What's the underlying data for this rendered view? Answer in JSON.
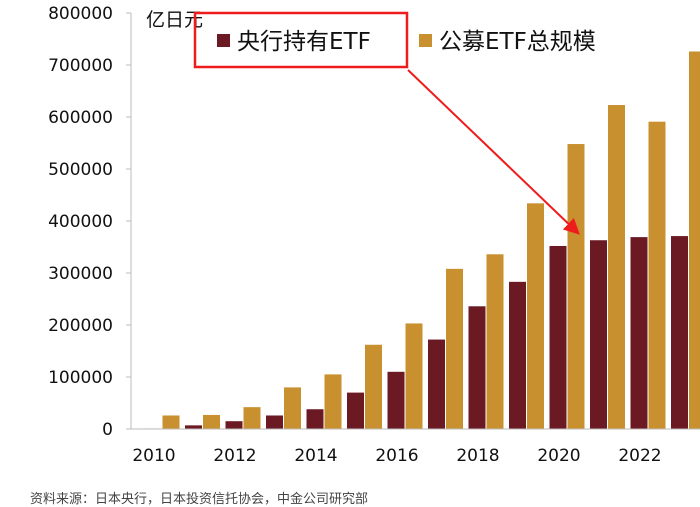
{
  "chart_data": {
    "type": "bar",
    "unit_label": "亿日元",
    "categories": [
      "2010",
      "2011",
      "2012",
      "2013",
      "2014",
      "2015",
      "2016",
      "2017",
      "2018",
      "2019",
      "2020",
      "2021",
      "2022",
      "2023"
    ],
    "x_tick_labels": [
      "2010",
      "2012",
      "2014",
      "2016",
      "2018",
      "2020",
      "2022"
    ],
    "ylim": [
      0,
      800000
    ],
    "y_ticks": [
      "0",
      "100000",
      "200000",
      "300000",
      "400000",
      "500000",
      "600000",
      "700000",
      "800000"
    ],
    "series": [
      {
        "name": "央行持有ETF",
        "color": "#6b1a24",
        "values": [
          1000,
          7000,
          15000,
          26000,
          38000,
          70000,
          110000,
          172000,
          236000,
          283000,
          352000,
          363000,
          369000,
          371000
        ]
      },
      {
        "name": "公募ETF总规模",
        "color": "#c8902e",
        "values": [
          26000,
          27000,
          42000,
          80000,
          105000,
          162000,
          203000,
          308000,
          336000,
          434000,
          548000,
          623000,
          591000,
          726000
        ]
      }
    ]
  },
  "source_text": "资料来源：日本央行，日本投资信托协会，中金公司研究部"
}
